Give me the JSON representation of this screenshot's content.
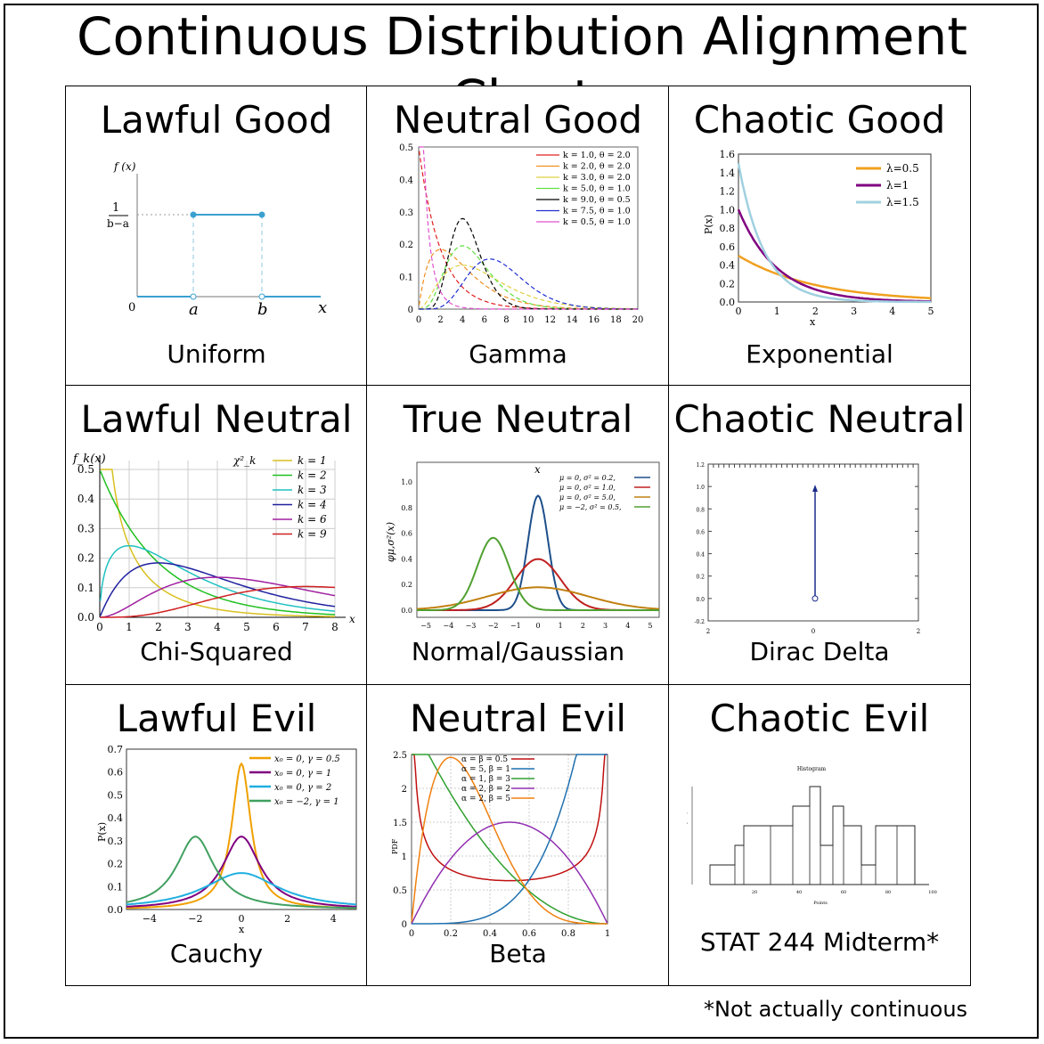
{
  "page": {
    "title": "Continuous Distribution Alignment Chart",
    "footnote": "*Not actually continuous"
  },
  "cells": [
    {
      "alignment": "Lawful Good",
      "distribution": "Uniform"
    },
    {
      "alignment": "Neutral Good",
      "distribution": "Gamma"
    },
    {
      "alignment": "Chaotic Good",
      "distribution": "Exponential"
    },
    {
      "alignment": "Lawful Neutral",
      "distribution": "Chi-Squared"
    },
    {
      "alignment": "True Neutral",
      "distribution": "Normal/Gaussian"
    },
    {
      "alignment": "Chaotic Neutral",
      "distribution": "Dirac Delta"
    },
    {
      "alignment": "Lawful Evil",
      "distribution": "Cauchy"
    },
    {
      "alignment": "Neutral Evil",
      "distribution": "Beta"
    },
    {
      "alignment": "Chaotic Evil",
      "distribution": "STAT 244 Midterm*"
    }
  ],
  "plots": {
    "uniform": {
      "ylabel": "f (x)",
      "height_num": "1",
      "height_den": "b−a",
      "origin": "0",
      "a": "a",
      "b": "b",
      "xlabel": "x",
      "line_color": "#3aa0d0"
    },
    "gamma": {
      "yticks": [
        "0",
        "0.1",
        "0.2",
        "0.3",
        "0.4",
        "0.5"
      ],
      "xticks": [
        "0",
        "2",
        "4",
        "6",
        "8",
        "10",
        "12",
        "14",
        "16",
        "18",
        "20"
      ],
      "legend": [
        {
          "label": "k = 1.0, θ = 2.0",
          "color": "#e02020"
        },
        {
          "label": "k = 2.0, θ = 2.0",
          "color": "#f09020"
        },
        {
          "label": "k = 3.0, θ = 2.0",
          "color": "#e0d040"
        },
        {
          "label": "k = 5.0, θ = 1.0",
          "color": "#60e040"
        },
        {
          "label": "k = 9.0, θ = 0.5",
          "color": "#000000"
        },
        {
          "label": "k = 7.5, θ = 1.0",
          "color": "#2030d0"
        },
        {
          "label": "k = 0.5, θ = 1.0",
          "color": "#e050d0"
        }
      ]
    },
    "exponential": {
      "ylabel": "P(x)",
      "xlabel": "x",
      "yticks": [
        "0.0",
        "0.2",
        "0.4",
        "0.6",
        "0.8",
        "1.0",
        "1.2",
        "1.4",
        "1.6"
      ],
      "xticks": [
        "0",
        "1",
        "2",
        "3",
        "4",
        "5"
      ],
      "legend": [
        {
          "label": "λ=0.5",
          "color": "#f0a020"
        },
        {
          "label": "λ=1",
          "color": "#800080"
        },
        {
          "label": "λ=1.5",
          "color": "#a0d0e0"
        }
      ]
    },
    "chisq": {
      "ylabel": "f_k(x)",
      "title": "χ²_k",
      "yticks": [
        "0.0",
        "0.1",
        "0.2",
        "0.3",
        "0.4",
        "0.5"
      ],
      "xticks": [
        "0",
        "1",
        "2",
        "3",
        "4",
        "5",
        "6",
        "7",
        "8"
      ],
      "xlabel": "x",
      "legend": [
        {
          "label": "k = 1",
          "color": "#d8c020"
        },
        {
          "label": "k = 2",
          "color": "#20c020"
        },
        {
          "label": "k = 3",
          "color": "#20c0c0"
        },
        {
          "label": "k = 4",
          "color": "#2020a0"
        },
        {
          "label": "k = 6",
          "color": "#a020a0"
        },
        {
          "label": "k = 9",
          "color": "#d02020"
        }
      ]
    },
    "normal": {
      "ylabel": "φμ,σ²(x)",
      "xlabel": "x",
      "yticks": [
        "0.0",
        "0.2",
        "0.4",
        "0.6",
        "0.8",
        "1.0"
      ],
      "xticks": [
        "−5",
        "−4",
        "−3",
        "−2",
        "−1",
        "0",
        "1",
        "2",
        "3",
        "4",
        "5"
      ],
      "legend": [
        {
          "label": "μ = 0,   σ² = 0.2,",
          "color": "#1e4f8a"
        },
        {
          "label": "μ = 0,   σ² = 1.0,",
          "color": "#c02020"
        },
        {
          "label": "μ = 0,   σ² = 5.0,",
          "color": "#c08010"
        },
        {
          "label": "μ = −2,  σ² = 0.5,",
          "color": "#50a030"
        }
      ]
    },
    "dirac": {
      "yticks": [
        "1.2",
        "1.0",
        "0.8",
        "0.6",
        "0.4",
        "0.2",
        "0.0",
        "-0.2"
      ],
      "xticks": [
        "2",
        "0",
        "2"
      ]
    },
    "cauchy": {
      "ylabel": "P(x)",
      "xlabel": "x",
      "yticks": [
        "0.0",
        "0.1",
        "0.2",
        "0.3",
        "0.4",
        "0.5",
        "0.6",
        "0.7"
      ],
      "xticks": [
        "−4",
        "−2",
        "0",
        "2",
        "4"
      ],
      "legend": [
        {
          "label": "x₀ = 0,  γ = 0.5",
          "color": "#f0a000"
        },
        {
          "label": "x₀ = 0,  γ = 1",
          "color": "#800080"
        },
        {
          "label": "x₀ = 0,  γ = 2",
          "color": "#20b0e0"
        },
        {
          "label": "x₀ = −2,  γ = 1",
          "color": "#40a060"
        }
      ]
    },
    "beta": {
      "ylabel": "PDF",
      "yticks": [
        "0",
        "0.5",
        "1",
        "1.5",
        "2",
        "2.5"
      ],
      "xticks": [
        "0",
        "0.2",
        "0.4",
        "0.6",
        "0.8",
        "1"
      ],
      "legend": [
        {
          "label": "α = β = 0.5",
          "color": "#c01010"
        },
        {
          "label": "α = 5, β = 1",
          "color": "#1e70b0"
        },
        {
          "label": "α = 1, β = 3",
          "color": "#30a030"
        },
        {
          "label": "α = 2, β = 2",
          "color": "#9030b0"
        },
        {
          "label": "α = 2, β = 5",
          "color": "#f08010"
        }
      ]
    },
    "midterm": {
      "title": "Histogram",
      "xticks": [
        "20",
        "40",
        "60",
        "80",
        "100"
      ],
      "xlabel": "Points",
      "ylabel": "Frequency"
    }
  }
}
